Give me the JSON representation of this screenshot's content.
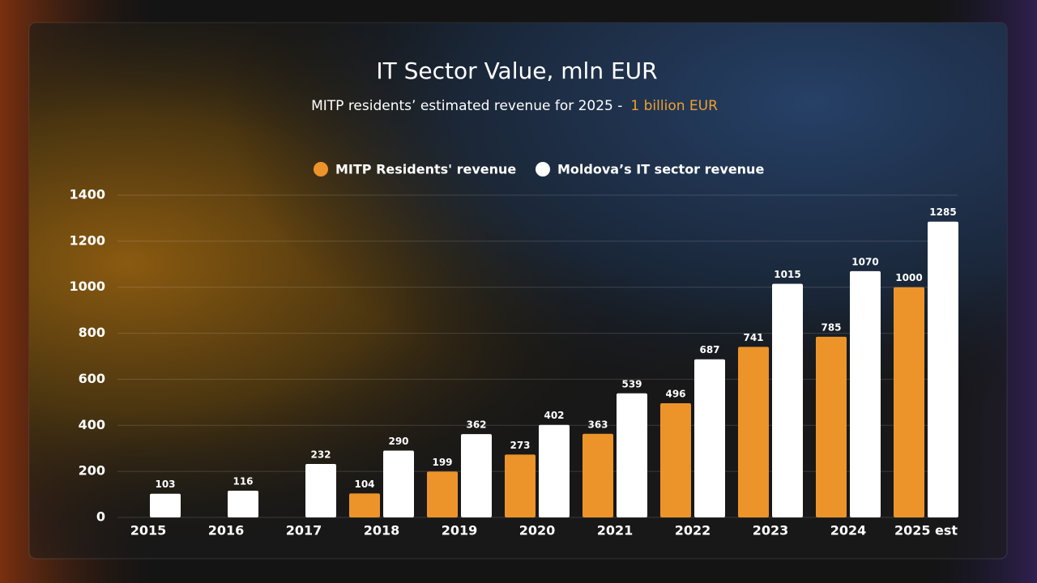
{
  "chart_data": {
    "type": "bar",
    "title": "IT Sector Value, mln EUR",
    "subtitle": "MITP residents’ estimated revenue for 2025 -",
    "subtitle_highlight": "1 billion EUR",
    "categories": [
      "2015",
      "2016",
      "2017",
      "2018",
      "2019",
      "2020",
      "2021",
      "2022",
      "2023",
      "2024",
      "2025 est"
    ],
    "series": [
      {
        "name": "MITP Residents' revenue",
        "color": "#ec942a",
        "values": [
          null,
          null,
          null,
          104,
          199,
          273,
          363,
          496,
          741,
          785,
          1000
        ]
      },
      {
        "name": "Moldova’s IT sector revenue",
        "color": "#ffffff",
        "values": [
          103,
          116,
          232,
          290,
          362,
          402,
          539,
          687,
          1015,
          1070,
          1285
        ]
      }
    ],
    "ylim": [
      0,
      1400
    ],
    "yticks": [
      0,
      200,
      400,
      600,
      800,
      1000,
      1200,
      1400
    ],
    "grid": true,
    "legend": "top"
  }
}
